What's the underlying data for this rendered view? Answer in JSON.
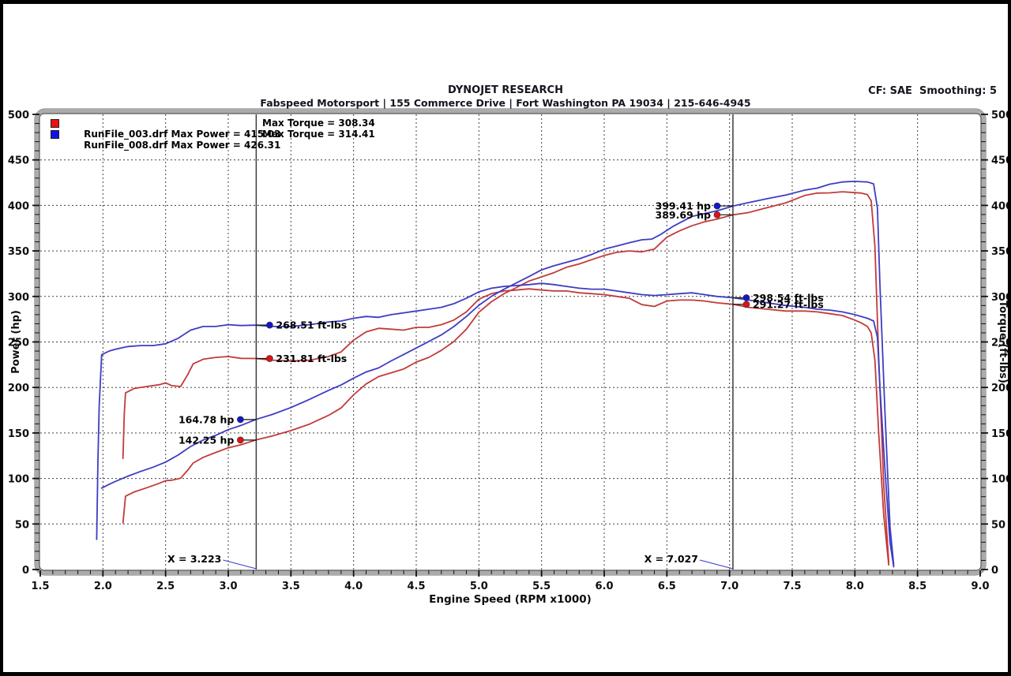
{
  "header": {
    "title": "DYNOJET RESEARCH",
    "subtitle": "Fabspeed Motorsport | 155 Commerce Drive | Fort Washington PA 19034 | 215-646-4945",
    "correction": "CF: SAE  Smoothing: 5"
  },
  "legend": {
    "rows": [
      {
        "color": "#ee1111",
        "label": "RunFile_003.drf Max Power = 415.03",
        "torque_label": "Max Torque = 308.34"
      },
      {
        "color": "#1111ee",
        "label": "RunFile_008.drf Max Power = 426.31",
        "torque_label": "Max Torque = 314.41"
      }
    ]
  },
  "chart_data": {
    "type": "line",
    "xlabel": "Engine Speed (RPM x1000)",
    "ylabel_left": "Power (hp)",
    "ylabel_right": "Torque (ft-lbs)",
    "xlim": [
      1.5,
      9.0
    ],
    "ylim": [
      0,
      500
    ],
    "grid": true,
    "xtick_labels": [
      "1.5",
      "2.0",
      "2.5",
      "3.0",
      "3.5",
      "4.0",
      "4.5",
      "5.0",
      "5.5",
      "6.0",
      "6.5",
      "7.0",
      "7.5",
      "8.0",
      "8.5",
      "9.0"
    ],
    "ytick_labels": [
      "0",
      "50",
      "100",
      "150",
      "200",
      "250",
      "300",
      "350",
      "400",
      "450",
      "500"
    ],
    "x_minor_step": 0.1,
    "y_minor_step": 10,
    "cursors": [
      {
        "label": "X = 3.223",
        "x": 3.223
      },
      {
        "label": "X = 7.027",
        "x": 7.027
      }
    ],
    "series": [
      {
        "id": "run003-torque",
        "run": "RunFile_003.drf",
        "measure": "torque_ftlbs",
        "color": "#c23b3b",
        "points": [
          [
            2.16,
            122
          ],
          [
            2.17,
            170
          ],
          [
            2.18,
            194
          ],
          [
            2.25,
            199
          ],
          [
            2.35,
            201
          ],
          [
            2.45,
            203
          ],
          [
            2.5,
            205
          ],
          [
            2.55,
            202
          ],
          [
            2.62,
            201
          ],
          [
            2.68,
            215
          ],
          [
            2.72,
            226
          ],
          [
            2.8,
            231
          ],
          [
            2.9,
            233
          ],
          [
            3.0,
            234
          ],
          [
            3.1,
            232
          ],
          [
            3.22,
            231.8
          ],
          [
            3.35,
            230
          ],
          [
            3.5,
            229
          ],
          [
            3.65,
            230
          ],
          [
            3.8,
            234
          ],
          [
            3.9,
            239
          ],
          [
            4.0,
            252
          ],
          [
            4.1,
            261
          ],
          [
            4.2,
            265
          ],
          [
            4.3,
            264
          ],
          [
            4.4,
            263
          ],
          [
            4.5,
            266
          ],
          [
            4.6,
            266
          ],
          [
            4.7,
            269
          ],
          [
            4.8,
            274
          ],
          [
            4.9,
            283
          ],
          [
            5.0,
            297
          ],
          [
            5.1,
            303
          ],
          [
            5.2,
            306
          ],
          [
            5.3,
            307
          ],
          [
            5.4,
            308.3
          ],
          [
            5.5,
            307
          ],
          [
            5.6,
            306
          ],
          [
            5.7,
            306
          ],
          [
            5.8,
            304
          ],
          [
            5.9,
            303
          ],
          [
            6.0,
            302
          ],
          [
            6.1,
            300
          ],
          [
            6.2,
            298
          ],
          [
            6.3,
            291
          ],
          [
            6.4,
            289
          ],
          [
            6.5,
            295
          ],
          [
            6.6,
            296
          ],
          [
            6.7,
            296
          ],
          [
            6.8,
            295
          ],
          [
            6.9,
            293
          ],
          [
            7.03,
            291.3
          ],
          [
            7.15,
            288
          ],
          [
            7.3,
            286
          ],
          [
            7.45,
            284
          ],
          [
            7.6,
            284
          ],
          [
            7.7,
            283
          ],
          [
            7.8,
            281
          ],
          [
            7.9,
            279
          ],
          [
            8.0,
            274
          ],
          [
            8.05,
            271
          ],
          [
            8.1,
            267
          ],
          [
            8.13,
            260
          ],
          [
            8.16,
            230
          ],
          [
            8.19,
            150
          ],
          [
            8.23,
            60
          ],
          [
            8.27,
            5
          ]
        ]
      },
      {
        "id": "run003-power",
        "run": "RunFile_003.drf",
        "measure": "power_hp",
        "color": "#c23b3b",
        "points": [
          [
            2.16,
            51
          ],
          [
            2.18,
            80.5
          ],
          [
            2.25,
            85.3
          ],
          [
            2.35,
            89.9
          ],
          [
            2.45,
            94.7
          ],
          [
            2.5,
            97.6
          ],
          [
            2.55,
            98.1
          ],
          [
            2.62,
            100.3
          ],
          [
            2.68,
            109.7
          ],
          [
            2.72,
            117
          ],
          [
            2.8,
            123.2
          ],
          [
            2.9,
            128.6
          ],
          [
            3.0,
            133.7
          ],
          [
            3.1,
            137
          ],
          [
            3.22,
            142.3
          ],
          [
            3.35,
            146.7
          ],
          [
            3.5,
            152.6
          ],
          [
            3.65,
            159.8
          ],
          [
            3.8,
            169.3
          ],
          [
            3.9,
            177.5
          ],
          [
            4.0,
            191.9
          ],
          [
            4.1,
            203.8
          ],
          [
            4.2,
            212
          ],
          [
            4.3,
            216.1
          ],
          [
            4.4,
            220.3
          ],
          [
            4.5,
            227.9
          ],
          [
            4.6,
            233
          ],
          [
            4.7,
            240.7
          ],
          [
            4.8,
            250.4
          ],
          [
            4.9,
            264
          ],
          [
            5.0,
            282.7
          ],
          [
            5.1,
            294.2
          ],
          [
            5.2,
            303
          ],
          [
            5.3,
            309.8
          ],
          [
            5.4,
            316.9
          ],
          [
            5.5,
            321.5
          ],
          [
            5.6,
            326.2
          ],
          [
            5.7,
            332.1
          ],
          [
            5.8,
            335.7
          ],
          [
            5.9,
            340.4
          ],
          [
            6.0,
            345
          ],
          [
            6.1,
            348.4
          ],
          [
            6.2,
            350
          ],
          [
            6.3,
            349
          ],
          [
            6.4,
            352.1
          ],
          [
            6.5,
            365.1
          ],
          [
            6.6,
            372
          ],
          [
            6.7,
            377.6
          ],
          [
            6.8,
            382
          ],
          [
            6.9,
            385
          ],
          [
            7.03,
            389.7
          ],
          [
            7.15,
            392.1
          ],
          [
            7.3,
            397.5
          ],
          [
            7.45,
            402.9
          ],
          [
            7.6,
            410.9
          ],
          [
            7.7,
            413.5
          ],
          [
            7.8,
            413.8
          ],
          [
            7.9,
            415
          ],
          [
            8.0,
            414
          ],
          [
            8.05,
            413.5
          ],
          [
            8.1,
            411.8
          ],
          [
            8.13,
            405
          ],
          [
            8.16,
            355
          ],
          [
            8.19,
            233
          ],
          [
            8.23,
            94
          ],
          [
            8.27,
            8
          ]
        ]
      },
      {
        "id": "run008-torque",
        "run": "RunFile_008.drf",
        "measure": "torque_ftlbs",
        "color": "#3d3dc4",
        "points": [
          [
            1.95,
            33
          ],
          [
            1.96,
            120
          ],
          [
            1.97,
            180
          ],
          [
            1.99,
            236
          ],
          [
            2.05,
            240
          ],
          [
            2.1,
            242
          ],
          [
            2.2,
            245
          ],
          [
            2.3,
            246
          ],
          [
            2.4,
            246
          ],
          [
            2.5,
            248
          ],
          [
            2.6,
            254
          ],
          [
            2.7,
            263
          ],
          [
            2.8,
            267
          ],
          [
            2.9,
            267
          ],
          [
            3.0,
            269
          ],
          [
            3.1,
            268
          ],
          [
            3.22,
            268.5
          ],
          [
            3.35,
            267
          ],
          [
            3.5,
            267
          ],
          [
            3.65,
            269
          ],
          [
            3.8,
            272
          ],
          [
            3.9,
            273
          ],
          [
            4.0,
            276
          ],
          [
            4.1,
            278
          ],
          [
            4.2,
            277
          ],
          [
            4.3,
            280
          ],
          [
            4.4,
            282
          ],
          [
            4.5,
            284
          ],
          [
            4.6,
            286
          ],
          [
            4.7,
            288
          ],
          [
            4.8,
            292
          ],
          [
            4.9,
            298
          ],
          [
            5.0,
            305
          ],
          [
            5.1,
            309
          ],
          [
            5.2,
            311
          ],
          [
            5.3,
            312
          ],
          [
            5.4,
            313
          ],
          [
            5.5,
            314.4
          ],
          [
            5.6,
            313
          ],
          [
            5.7,
            311
          ],
          [
            5.8,
            309
          ],
          [
            5.9,
            308
          ],
          [
            6.0,
            308
          ],
          [
            6.1,
            306
          ],
          [
            6.2,
            304
          ],
          [
            6.3,
            302
          ],
          [
            6.4,
            301
          ],
          [
            6.5,
            302
          ],
          [
            6.6,
            303
          ],
          [
            6.7,
            304
          ],
          [
            6.8,
            302
          ],
          [
            6.9,
            300
          ],
          [
            7.03,
            298.5
          ],
          [
            7.15,
            296
          ],
          [
            7.3,
            293
          ],
          [
            7.45,
            290
          ],
          [
            7.6,
            288
          ],
          [
            7.7,
            286
          ],
          [
            7.8,
            285
          ],
          [
            7.9,
            283
          ],
          [
            8.0,
            280
          ],
          [
            8.05,
            278
          ],
          [
            8.1,
            276
          ],
          [
            8.15,
            273
          ],
          [
            8.18,
            255
          ],
          [
            8.2,
            200
          ],
          [
            8.24,
            110
          ],
          [
            8.28,
            30
          ],
          [
            8.31,
            3
          ]
        ]
      },
      {
        "id": "run008-power",
        "run": "RunFile_008.drf",
        "measure": "power_hp",
        "color": "#3d3dc4",
        "points": [
          [
            1.99,
            89.4
          ],
          [
            2.05,
            93.7
          ],
          [
            2.1,
            96.8
          ],
          [
            2.2,
            102.6
          ],
          [
            2.3,
            107.7
          ],
          [
            2.4,
            112.4
          ],
          [
            2.5,
            118
          ],
          [
            2.6,
            125.7
          ],
          [
            2.7,
            135.2
          ],
          [
            2.8,
            142.3
          ],
          [
            2.9,
            147.4
          ],
          [
            3.0,
            153.6
          ],
          [
            3.1,
            158.2
          ],
          [
            3.22,
            164.8
          ],
          [
            3.35,
            170.3
          ],
          [
            3.5,
            177.9
          ],
          [
            3.65,
            187
          ],
          [
            3.8,
            196.8
          ],
          [
            3.9,
            202.7
          ],
          [
            4.0,
            210.2
          ],
          [
            4.1,
            217
          ],
          [
            4.2,
            221.5
          ],
          [
            4.3,
            229.2
          ],
          [
            4.4,
            236.2
          ],
          [
            4.5,
            243.3
          ],
          [
            4.6,
            250.5
          ],
          [
            4.7,
            257.7
          ],
          [
            4.8,
            266.9
          ],
          [
            4.9,
            278
          ],
          [
            5.0,
            290.3
          ],
          [
            5.1,
            300.1
          ],
          [
            5.2,
            307.9
          ],
          [
            5.3,
            314.9
          ],
          [
            5.4,
            321.8
          ],
          [
            5.5,
            329.2
          ],
          [
            5.6,
            333.7
          ],
          [
            5.7,
            337.5
          ],
          [
            5.8,
            341.3
          ],
          [
            5.9,
            346.1
          ],
          [
            6.0,
            351.9
          ],
          [
            6.1,
            355.4
          ],
          [
            6.2,
            358.9
          ],
          [
            6.3,
            362.2
          ],
          [
            6.38,
            363
          ],
          [
            6.45,
            368
          ],
          [
            6.55,
            377
          ],
          [
            6.6,
            380.7
          ],
          [
            6.7,
            387.9
          ],
          [
            6.8,
            391
          ],
          [
            6.9,
            394.1
          ],
          [
            7.03,
            399.4
          ],
          [
            7.15,
            403
          ],
          [
            7.3,
            407.4
          ],
          [
            7.45,
            411.4
          ],
          [
            7.6,
            416.8
          ],
          [
            7.7,
            419
          ],
          [
            7.8,
            423.3
          ],
          [
            7.9,
            425.7
          ],
          [
            8.0,
            426.4
          ],
          [
            8.05,
            426
          ],
          [
            8.1,
            425.7
          ],
          [
            8.15,
            423.7
          ],
          [
            8.18,
            397
          ],
          [
            8.2,
            312
          ],
          [
            8.24,
            173
          ],
          [
            8.28,
            47
          ],
          [
            8.31,
            5
          ]
        ]
      }
    ],
    "annotations": [
      {
        "text": "399.41 hp",
        "x": 7.027,
        "y": 399.41,
        "color": "#1515cf",
        "side": "left"
      },
      {
        "text": "389.69 hp",
        "x": 7.027,
        "y": 389.69,
        "color": "#e01212",
        "side": "left"
      },
      {
        "text": "298.54 ft-lbs",
        "x": 7.027,
        "y": 298.54,
        "color": "#1515cf",
        "side": "right"
      },
      {
        "text": "291.27 ft-lbs",
        "x": 7.027,
        "y": 291.27,
        "color": "#e01212",
        "side": "right"
      },
      {
        "text": "268.51 ft-lbs",
        "x": 3.223,
        "y": 268.51,
        "color": "#1515cf",
        "side": "right"
      },
      {
        "text": "231.81 ft-lbs",
        "x": 3.223,
        "y": 231.81,
        "color": "#e01212",
        "side": "right"
      },
      {
        "text": "164.78 hp",
        "x": 3.223,
        "y": 164.78,
        "color": "#1515cf",
        "side": "left"
      },
      {
        "text": "142.25 hp",
        "x": 3.223,
        "y": 142.25,
        "color": "#e01212",
        "side": "left"
      }
    ]
  }
}
